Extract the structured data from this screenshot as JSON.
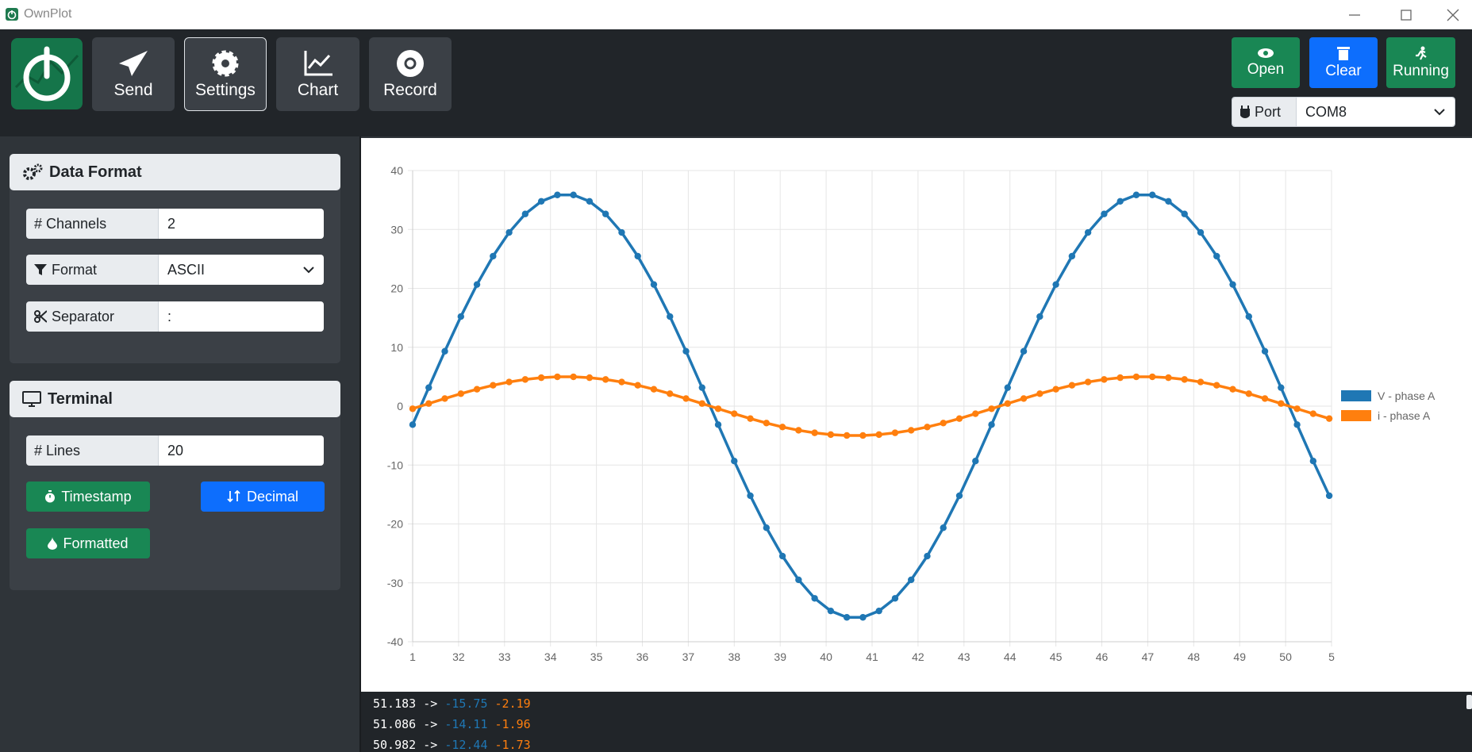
{
  "window": {
    "title": "OwnPlot"
  },
  "toolbar": {
    "buttons": [
      "Send",
      "Settings",
      "Chart",
      "Record"
    ],
    "actions": [
      "Open",
      "Clear",
      "Running"
    ],
    "port_label": "Port",
    "port_value": "COM8"
  },
  "sidebar": {
    "data_format": {
      "title": "Data Format",
      "fields": [
        {
          "label": "# Channels",
          "value": "2"
        },
        {
          "label": "Format",
          "value": "ASCII"
        },
        {
          "label": "Separator",
          "value": ":"
        }
      ]
    },
    "terminal": {
      "title": "Terminal",
      "lines_label": "# Lines",
      "lines_value": "20",
      "buttons": [
        "Timestamp",
        "Decimal",
        "Formatted"
      ]
    }
  },
  "chart_data": {
    "type": "line",
    "grid": true,
    "legend": "right",
    "markers": true,
    "x": [
      31,
      31.35,
      31.7,
      32.05,
      32.4,
      32.75,
      33.1,
      33.45,
      33.8,
      34.15,
      34.5,
      34.85,
      35.2,
      35.55,
      35.9,
      36.25,
      36.6,
      36.95,
      37.3,
      37.65,
      38,
      38.35,
      38.7,
      39.05,
      39.4,
      39.75,
      40.1,
      40.45,
      40.8,
      41.15,
      41.5,
      41.85,
      42.2,
      42.55,
      42.9,
      43.25,
      43.6,
      43.95,
      44.3,
      44.65,
      45,
      45.35,
      45.7,
      46.05,
      46.4,
      46.75,
      47.1,
      47.45,
      47.8,
      48.15,
      48.5,
      48.85,
      49.2,
      49.55,
      49.9,
      50.25,
      50.6,
      50.95
    ],
    "series": [
      {
        "name": "V - phase A",
        "color": "#1f77b4",
        "values": [
          -3.14,
          3.14,
          9.32,
          15.21,
          20.65,
          25.46,
          29.49,
          32.63,
          34.77,
          35.86,
          35.86,
          34.77,
          32.63,
          29.49,
          25.46,
          20.65,
          15.21,
          9.32,
          3.14,
          -3.14,
          -9.32,
          -15.21,
          -20.65,
          -25.46,
          -29.49,
          -32.63,
          -34.77,
          -35.86,
          -35.86,
          -34.77,
          -32.63,
          -29.49,
          -25.46,
          -20.65,
          -15.21,
          -9.32,
          -3.14,
          3.14,
          9.32,
          15.21,
          20.65,
          25.46,
          29.49,
          32.63,
          34.77,
          35.86,
          35.86,
          34.77,
          32.63,
          29.49,
          25.46,
          20.65,
          15.21,
          9.32,
          3.14,
          -3.14,
          -9.32,
          -15.21
        ]
      },
      {
        "name": "i - phase A",
        "color": "#ff7f0e",
        "values": [
          -0.44,
          0.44,
          1.29,
          2.11,
          2.87,
          3.54,
          4.1,
          4.53,
          4.83,
          4.98,
          4.98,
          4.83,
          4.53,
          4.1,
          3.54,
          2.87,
          2.11,
          1.29,
          0.44,
          -0.44,
          -1.29,
          -2.11,
          -2.87,
          -3.54,
          -4.1,
          -4.53,
          -4.83,
          -4.98,
          -4.98,
          -4.83,
          -4.53,
          -4.1,
          -3.54,
          -2.87,
          -2.11,
          -1.29,
          -0.44,
          0.44,
          1.29,
          2.11,
          2.87,
          3.54,
          4.1,
          4.53,
          4.83,
          4.98,
          4.98,
          4.83,
          4.53,
          4.1,
          3.54,
          2.87,
          2.11,
          1.29,
          0.44,
          -0.44,
          -1.29,
          -2.11
        ]
      }
    ],
    "xlim": [
      31,
      51
    ],
    "ylim": [
      -40,
      40
    ],
    "xticks": [
      {
        "value": 31,
        "label": "1"
      },
      32,
      33,
      34,
      35,
      36,
      37,
      38,
      39,
      40,
      41,
      42,
      43,
      44,
      45,
      46,
      47,
      48,
      49,
      50,
      {
        "value": 51,
        "label": "5"
      }
    ],
    "yticks": [
      -40,
      -30,
      -20,
      -10,
      0,
      10,
      20,
      30,
      40
    ]
  },
  "terminal": {
    "arrow": "->",
    "lines": [
      {
        "time": "51.183",
        "values": [
          "-15.75",
          "-2.19"
        ]
      },
      {
        "time": "51.086",
        "values": [
          "-14.11",
          "-1.96"
        ]
      },
      {
        "time": "50.982",
        "values": [
          "-12.44",
          "-1.73"
        ]
      }
    ]
  }
}
